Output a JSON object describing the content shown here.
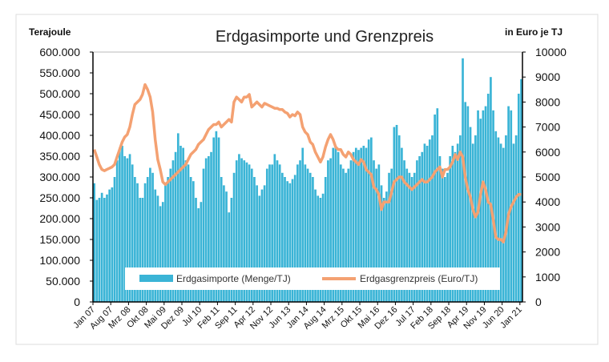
{
  "chart_data": {
    "type": "bar+line",
    "title": "Erdgasimporte und Grenzpreis",
    "ylabel_left": "Terajoule",
    "ylabel_right": "in Euro je TJ",
    "ylim_left": [
      0,
      600000
    ],
    "ylim_right": [
      0,
      10000
    ],
    "yticks_left": [
      "0",
      "50.000",
      "100.000",
      "150.000",
      "200.000",
      "250.000",
      "300.000",
      "350.000",
      "400.000",
      "450.000",
      "500.000",
      "550.000",
      "600.000"
    ],
    "yticks_right": [
      "0",
      "1000",
      "2000",
      "3000",
      "4000",
      "5000",
      "6000",
      "7000",
      "8000",
      "9000",
      "10000"
    ],
    "xtick_labels": [
      "Jan 07",
      "Aug 07",
      "Mrz 08",
      "Okt 08",
      "Mai 09",
      "Dez 09",
      "Jul 10",
      "Feb 11",
      "Sep 11",
      "Apr 12",
      "Nov 12",
      "Jun 13",
      "Jan 14",
      "Aug 14",
      "Mrz 15",
      "Okt 15",
      "Mai 16",
      "Dez 16",
      "Jul 17",
      "Feb 18",
      "Sep 18",
      "Apr 19",
      "Nov 19",
      "Jun 20",
      "Jan 21"
    ],
    "xtick_step_months": 7,
    "legend_position": "bottom-inside",
    "series": [
      {
        "name": "Erdgasimporte (Menge/TJ)",
        "type": "bar",
        "axis": "left",
        "color": "#3ab4d6",
        "values_thousands": [
          285,
          245,
          250,
          262,
          250,
          258,
          270,
          275,
          300,
          340,
          370,
          375,
          350,
          345,
          355,
          330,
          300,
          285,
          250,
          250,
          285,
          300,
          322,
          310,
          270,
          255,
          230,
          240,
          280,
          300,
          320,
          340,
          360,
          405,
          375,
          370,
          340,
          330,
          300,
          290,
          250,
          225,
          240,
          320,
          345,
          350,
          360,
          395,
          410,
          395,
          300,
          280,
          265,
          215,
          250,
          310,
          340,
          355,
          345,
          340,
          335,
          330,
          320,
          300,
          280,
          255,
          270,
          280,
          320,
          330,
          330,
          355,
          340,
          330,
          310,
          300,
          290,
          285,
          295,
          305,
          330,
          340,
          370,
          330,
          320,
          310,
          300,
          270,
          255,
          250,
          260,
          300,
          340,
          345,
          370,
          375,
          360,
          330,
          320,
          310,
          320,
          340,
          360,
          370,
          365,
          370,
          375,
          370,
          390,
          395,
          340,
          320,
          330,
          280,
          250,
          265,
          310,
          320,
          420,
          425,
          400,
          370,
          340,
          320,
          310,
          300,
          310,
          340,
          350,
          360,
          380,
          375,
          390,
          400,
          450,
          465,
          350,
          320,
          300,
          310,
          350,
          375,
          360,
          380,
          400,
          585,
          480,
          470,
          420,
          380,
          400,
          460,
          440,
          460,
          470,
          500,
          540,
          460,
          410,
          395,
          380,
          370,
          400,
          470,
          460,
          380,
          400,
          500,
          535
        ]
      },
      {
        "name": "Erdgasgrenzpreis (Euro/TJ)",
        "type": "line",
        "axis": "right",
        "color": "#f4a172",
        "values": [
          6100,
          5800,
          5500,
          5300,
          5250,
          5300,
          5350,
          5400,
          5500,
          5800,
          6100,
          6400,
          6600,
          6700,
          7000,
          7500,
          7900,
          8000,
          8100,
          8300,
          8700,
          8500,
          8200,
          7600,
          6500,
          5700,
          5300,
          4800,
          4700,
          4800,
          4900,
          5000,
          5100,
          5200,
          5300,
          5400,
          5500,
          5700,
          5900,
          6000,
          6100,
          6300,
          6400,
          6500,
          6700,
          6900,
          7000,
          7100,
          7100,
          7200,
          7000,
          7100,
          7200,
          7300,
          7200,
          8000,
          8200,
          8100,
          8000,
          8200,
          8200,
          8300,
          7800,
          7900,
          8000,
          7900,
          7800,
          7950,
          7900,
          7850,
          7800,
          7750,
          7750,
          7700,
          7700,
          7600,
          7550,
          7400,
          7500,
          7450,
          7600,
          7500,
          7000,
          6800,
          6700,
          6400,
          6300,
          6000,
          5800,
          5600,
          5800,
          6200,
          6500,
          6700,
          6500,
          6200,
          6100,
          6100,
          5900,
          5800,
          6000,
          5900,
          5700,
          5600,
          5500,
          5700,
          5600,
          5300,
          5200,
          5100,
          4600,
          4500,
          4300,
          3700,
          4000,
          4000,
          4000,
          4400,
          4800,
          4900,
          5000,
          5000,
          4800,
          4700,
          4600,
          4500,
          4600,
          4700,
          4800,
          4900,
          4800,
          4800,
          4900,
          5000,
          5200,
          5300,
          5400,
          5000,
          5300,
          5300,
          5400,
          5600,
          5900,
          5700,
          6000,
          5800,
          5000,
          4500,
          4200,
          3700,
          3400,
          3600,
          4300,
          4800,
          4500,
          4000,
          3900,
          3300,
          2600,
          2500,
          2500,
          2400,
          2800,
          3500,
          3800,
          4000,
          4200,
          4300,
          4300
        ]
      }
    ]
  }
}
